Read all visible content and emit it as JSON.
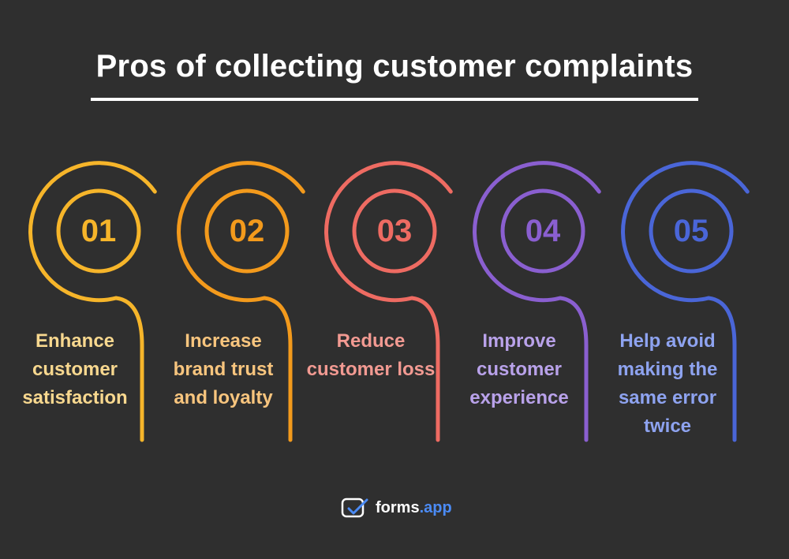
{
  "title": "Pros of collecting customer complaints",
  "items": [
    {
      "number": "01",
      "label_lines": [
        "Enhance",
        "customer",
        "satisfaction"
      ],
      "color": "#f6b52a"
    },
    {
      "number": "02",
      "label_lines": [
        "Increase",
        "brand trust",
        "and loyalty"
      ],
      "color": "#f39a1c"
    },
    {
      "number": "03",
      "label_lines": [
        "Reduce",
        "customer loss"
      ],
      "color": "#ee6b62"
    },
    {
      "number": "04",
      "label_lines": [
        "Improve",
        "customer",
        "experience"
      ],
      "color": "#8a5fd0"
    },
    {
      "number": "05",
      "label_lines": [
        "Help avoid",
        "making the",
        "same error",
        "twice"
      ],
      "color": "#4a66d8"
    }
  ],
  "brand": {
    "name": "forms",
    "tld": ".app",
    "accent": "#4b8bf5"
  }
}
